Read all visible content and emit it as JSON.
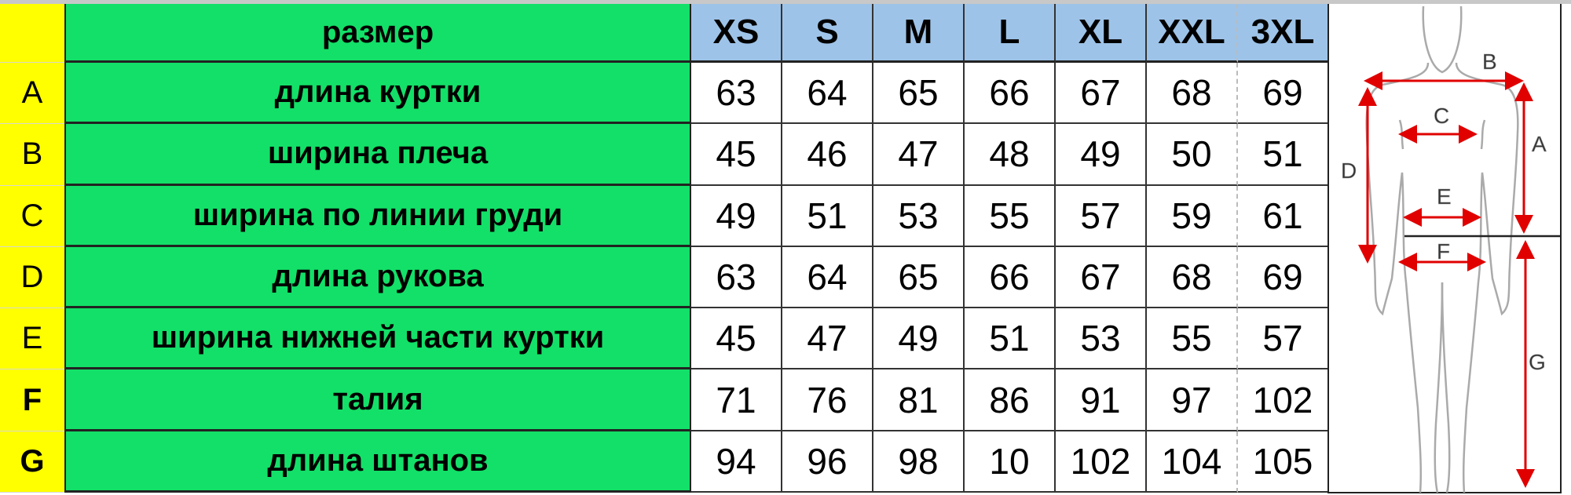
{
  "header": {
    "label": "размер"
  },
  "sizes": [
    "XS",
    "S",
    "M",
    "L",
    "XL",
    "XXL",
    "3XL"
  ],
  "rows": [
    {
      "letter": "A",
      "label": "длина куртки",
      "values": [
        "63",
        "64",
        "65",
        "66",
        "67",
        "68",
        "69"
      ]
    },
    {
      "letter": "B",
      "label": "ширина плеча",
      "values": [
        "45",
        "46",
        "47",
        "48",
        "49",
        "50",
        "51"
      ]
    },
    {
      "letter": "C",
      "label": "ширина по линии груди",
      "values": [
        "49",
        "51",
        "53",
        "55",
        "57",
        "59",
        "61"
      ]
    },
    {
      "letter": "D",
      "label": "длина рукова",
      "values": [
        "63",
        "64",
        "65",
        "66",
        "67",
        "68",
        "69"
      ]
    },
    {
      "letter": "E",
      "label": "ширина нижней части куртки",
      "values": [
        "45",
        "47",
        "49",
        "51",
        "53",
        "55",
        "57"
      ]
    },
    {
      "letter": "F",
      "label": "талия",
      "values": [
        "71",
        "76",
        "81",
        "86",
        "91",
        "97",
        "102"
      ]
    },
    {
      "letter": "G",
      "label": "длина штанов",
      "values": [
        "94",
        "96",
        "98",
        "10",
        "102",
        "104",
        "105"
      ]
    }
  ],
  "figure": {
    "labels": {
      "A": "A",
      "B": "B",
      "C": "C",
      "D": "D",
      "E": "E",
      "F": "F",
      "G": "G"
    }
  },
  "colors": {
    "letter_column": "#ffff00",
    "label_column": "#13e068",
    "size_header": "#9ec3e8",
    "arrows": "#e00000"
  }
}
